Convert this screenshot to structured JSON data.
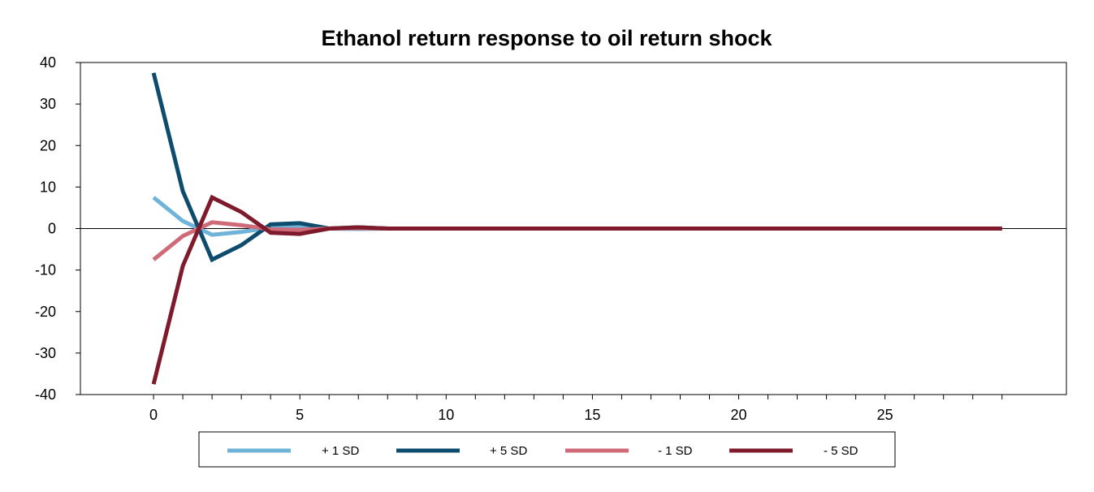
{
  "chart_data": {
    "type": "line",
    "title": "Ethanol return response to oil return shock",
    "xlabel": "",
    "ylabel": "",
    "xlim": [
      -2.5,
      31.2
    ],
    "ylim": [
      -40,
      40
    ],
    "x_ticks": [
      0,
      5,
      10,
      15,
      20,
      25
    ],
    "y_ticks": [
      40,
      30,
      20,
      10,
      0,
      -10,
      -20,
      -30,
      -40
    ],
    "x_tick_labels": [
      "0",
      "5",
      "10",
      "15",
      "20",
      "25"
    ],
    "y_tick_labels": [
      "40",
      "30",
      "20",
      "10",
      "0",
      "-10",
      "-20",
      "-30",
      "-40"
    ],
    "x": [
      0,
      1,
      2,
      3,
      4,
      5,
      6,
      7,
      8,
      9,
      10,
      11,
      12,
      13,
      14,
      15,
      16,
      17,
      18,
      19,
      20,
      21,
      22,
      23,
      24,
      25,
      26,
      27,
      28,
      29
    ],
    "grid": false,
    "legend_position": "bottom",
    "series": [
      {
        "name": "+ 1 SD",
        "color": "#6fb3d9",
        "values": [
          7.5,
          1.8,
          -1.5,
          -0.8,
          0.2,
          0.3,
          0,
          -0.1,
          0,
          0,
          0,
          0,
          0,
          0,
          0,
          0,
          0,
          0,
          0,
          0,
          0,
          0,
          0,
          0,
          0,
          0,
          0,
          0,
          0,
          0
        ]
      },
      {
        "name": "+ 5 SD",
        "color": "#0d4c6c",
        "values": [
          37.5,
          9,
          -7.5,
          -4,
          1,
          1.3,
          0,
          0.3,
          0,
          0,
          0,
          0,
          0,
          0,
          0,
          0,
          0,
          0,
          0,
          0,
          0,
          0,
          0,
          0,
          0,
          0,
          0,
          0,
          0,
          0
        ]
      },
      {
        "name": "- 1 SD",
        "color": "#cf6b79",
        "values": [
          -7.5,
          -1.8,
          1.5,
          0.8,
          -0.2,
          -0.3,
          0,
          0.1,
          0,
          0,
          0,
          0,
          0,
          0,
          0,
          0,
          0,
          0,
          0,
          0,
          0,
          0,
          0,
          0,
          0,
          0,
          0,
          0,
          0,
          0
        ]
      },
      {
        "name": "- 5 SD",
        "color": "#7f1a2c",
        "values": [
          -37.5,
          -9,
          7.5,
          4,
          -1,
          -1.3,
          0,
          0.3,
          0,
          0,
          0,
          0,
          0,
          0,
          0,
          0,
          0,
          0,
          0,
          0,
          0,
          0,
          0,
          0,
          0,
          0,
          0,
          0,
          0,
          0
        ]
      }
    ]
  }
}
